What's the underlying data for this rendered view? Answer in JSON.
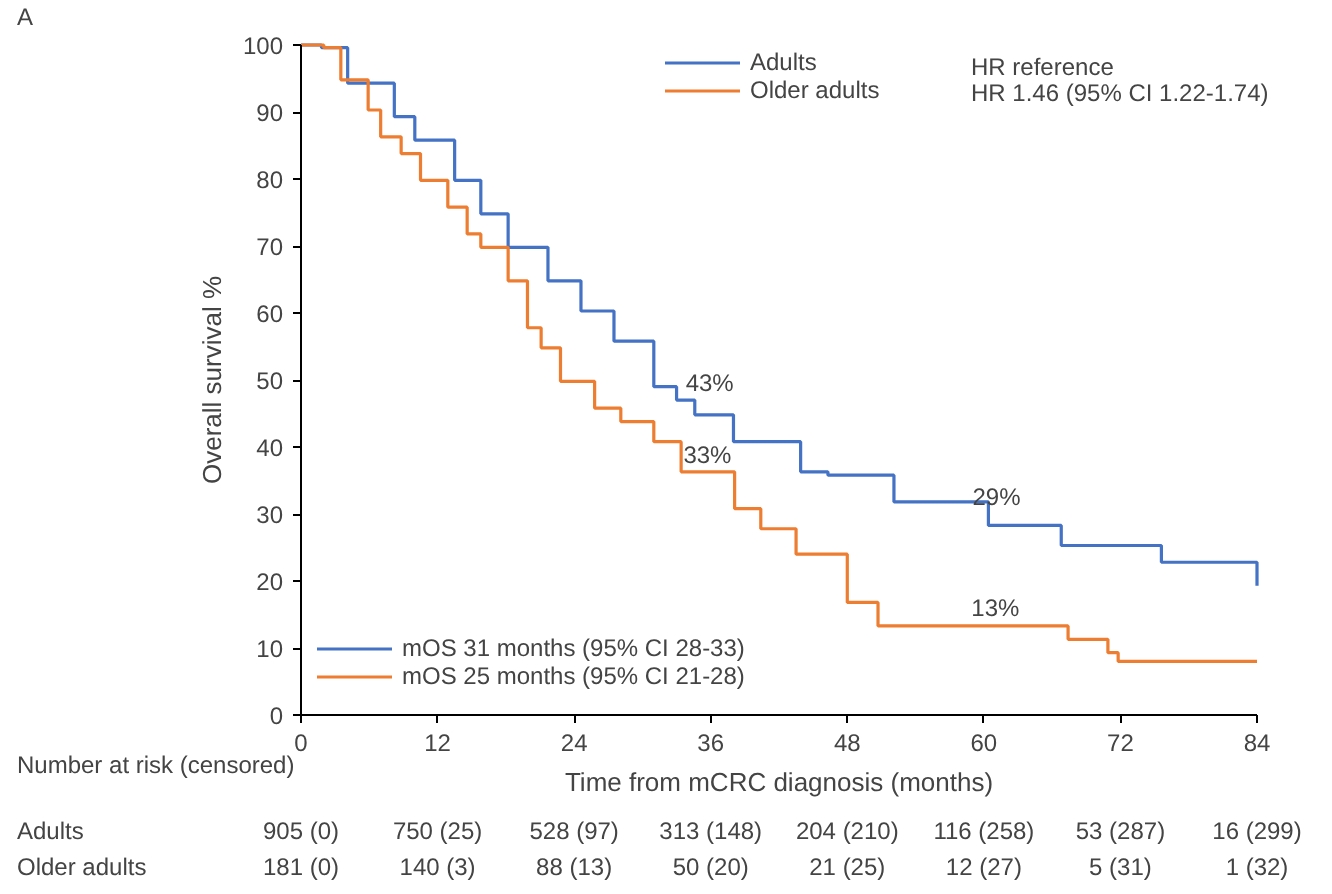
{
  "chart_data": {
    "type": "step",
    "xlabel": "Time from mCRC diagnosis (months)",
    "ylabel": "Overall survival %",
    "xlim": [
      0,
      84
    ],
    "xticks": [
      0,
      12,
      24,
      36,
      48,
      60,
      72,
      84
    ],
    "ylim": [
      0,
      100
    ],
    "yticks": [
      0,
      10,
      20,
      30,
      40,
      50,
      60,
      70,
      80,
      90,
      100
    ],
    "grid": false,
    "legend": "top right",
    "marker": "none",
    "line_style": "solid",
    "series": [
      {
        "name": "Adults",
        "color": "#4472c4",
        "x": [
          0,
          1.8,
          4.1,
          8.2,
          10,
          13.5,
          15.8,
          18.2,
          21.7,
          24.6,
          27.5,
          31,
          33,
          34.6,
          38,
          43.9,
          46.3,
          52.1,
          60.4,
          66.8,
          75.6,
          84
        ],
        "values": [
          100,
          99.6,
          94.3,
          89.3,
          85.8,
          79.8,
          74.8,
          69.8,
          64.8,
          60.3,
          55.8,
          49,
          47,
          44.8,
          40.8,
          36.3,
          35.8,
          31.8,
          28.3,
          25.3,
          22.8,
          19.3
        ]
      },
      {
        "name": "Older adults",
        "color": "#ed7d31",
        "x": [
          0,
          2,
          3.5,
          5.9,
          7,
          8.8,
          10.5,
          12.9,
          14.6,
          15.8,
          18.2,
          19.9,
          21.1,
          22.8,
          25.8,
          28.1,
          31,
          33.4,
          38.1,
          40.4,
          43.5,
          48,
          50.7,
          65.6,
          67.4,
          70.9,
          71.8,
          84
        ],
        "values": [
          100,
          99.6,
          94.8,
          90.3,
          86.3,
          83.8,
          79.8,
          75.8,
          71.8,
          69.8,
          64.8,
          57.8,
          54.8,
          49.8,
          45.8,
          43.8,
          40.8,
          36.3,
          30.8,
          27.8,
          24,
          16.8,
          13.3,
          13.3,
          11.3,
          9.3,
          8,
          8
        ]
      }
    ],
    "annotations": [
      "43%",
      "33%",
      "29%",
      "13%",
      "A",
      "HR reference",
      "HR 1.46 (95% CI 1.22-1.74)",
      "mOS 31 months (95% CI 28-33)",
      "mOS 25 months (95% CI 21-28)",
      "Number at risk (censored)",
      "Adults",
      "905 (0)",
      "750 (25)",
      "528 (97)",
      "313 (148)",
      "204 (210)",
      "116 (258)",
      "53 (287)",
      "16 (299)",
      "Older adults",
      "181 (0)",
      "140 (3)",
      "88 (13)",
      "50 (20)",
      "21 (25)",
      "12 (27)",
      "5 (31)",
      "1 (32)"
    ]
  }
}
